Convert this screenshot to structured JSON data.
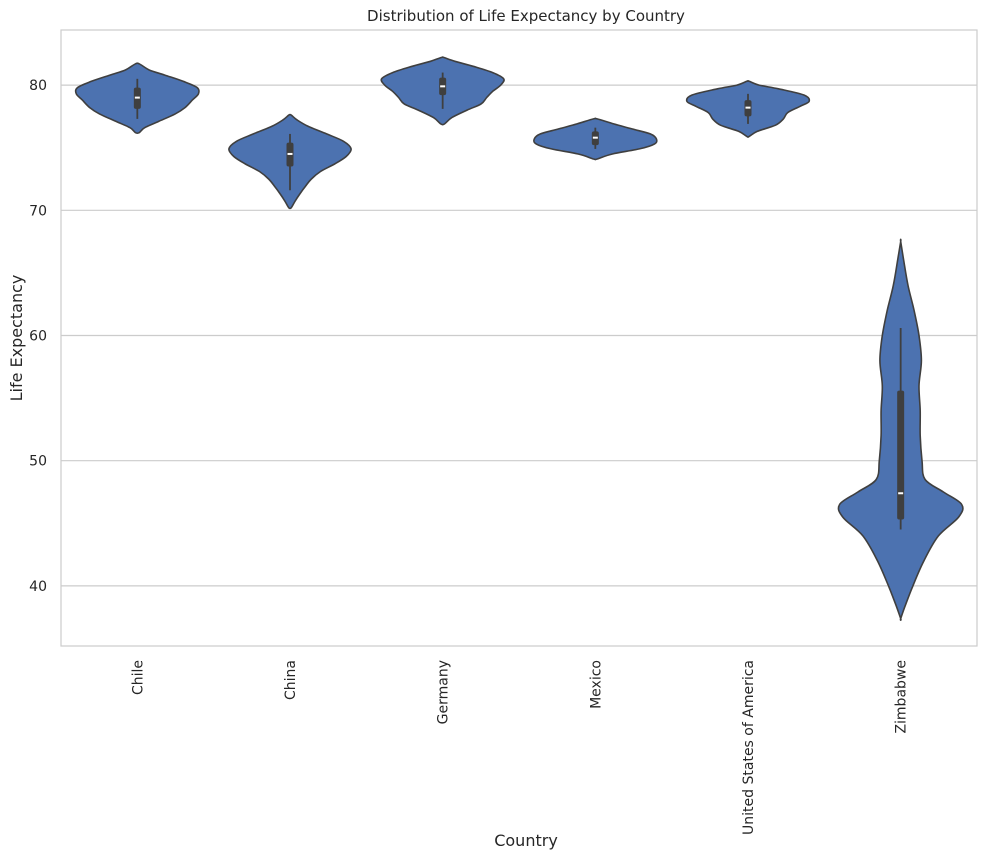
{
  "chart_data": {
    "type": "violin",
    "title": "Distribution of Life Expectancy by Country",
    "xlabel": "Country",
    "ylabel": "Life Expectancy",
    "ylim": [
      35.2,
      84.4
    ],
    "yticks": [
      40,
      50,
      60,
      70,
      80
    ],
    "grid": "horizontal",
    "colors": {
      "violin_fill": "#4c72b0",
      "violin_edge": "#3f3f3f",
      "box": "#3f3f3f",
      "median": "#ffffff",
      "grid": "#cccccc",
      "frame": "#cccccc"
    },
    "categories": [
      "Chile",
      "China",
      "Germany",
      "Mexico",
      "United States of America",
      "Zimbabwe"
    ],
    "violins": [
      {
        "category": "Chile",
        "min": 77.3,
        "q1": 78.1,
        "median": 79.0,
        "q3": 79.8,
        "max": 80.5,
        "density": [
          [
            76.2,
            0.03
          ],
          [
            76.6,
            0.12
          ],
          [
            77.1,
            0.35
          ],
          [
            77.7,
            0.62
          ],
          [
            78.2,
            0.78
          ],
          [
            78.8,
            0.9
          ],
          [
            79.3,
            1.0
          ],
          [
            79.8,
            0.98
          ],
          [
            80.3,
            0.75
          ],
          [
            80.8,
            0.45
          ],
          [
            81.2,
            0.2
          ],
          [
            81.7,
            0.03
          ]
        ]
      },
      {
        "category": "China",
        "min": 71.6,
        "q1": 73.5,
        "median": 74.5,
        "q3": 75.4,
        "max": 76.1,
        "density": [
          [
            70.2,
            0.02
          ],
          [
            70.7,
            0.08
          ],
          [
            71.3,
            0.16
          ],
          [
            71.9,
            0.25
          ],
          [
            72.5,
            0.35
          ],
          [
            73.1,
            0.5
          ],
          [
            73.7,
            0.73
          ],
          [
            74.3,
            0.92
          ],
          [
            74.9,
            1.0
          ],
          [
            75.5,
            0.88
          ],
          [
            76.1,
            0.6
          ],
          [
            76.7,
            0.3
          ],
          [
            77.2,
            0.12
          ],
          [
            77.6,
            0.02
          ]
        ]
      },
      {
        "category": "Germany",
        "min": 78.1,
        "q1": 79.2,
        "median": 79.9,
        "q3": 80.6,
        "max": 81.0,
        "density": [
          [
            76.9,
            0.03
          ],
          [
            77.4,
            0.15
          ],
          [
            78.0,
            0.4
          ],
          [
            78.5,
            0.63
          ],
          [
            79.0,
            0.72
          ],
          [
            79.5,
            0.82
          ],
          [
            80.0,
            0.95
          ],
          [
            80.5,
            1.0
          ],
          [
            81.0,
            0.82
          ],
          [
            81.5,
            0.5
          ],
          [
            81.9,
            0.2
          ],
          [
            82.2,
            0.02
          ]
        ]
      },
      {
        "category": "Mexico",
        "min": 74.9,
        "q1": 75.2,
        "median": 75.8,
        "q3": 76.3,
        "max": 76.6,
        "density": [
          [
            74.1,
            0.03
          ],
          [
            74.5,
            0.28
          ],
          [
            74.9,
            0.72
          ],
          [
            75.3,
            0.97
          ],
          [
            75.7,
            1.0
          ],
          [
            76.1,
            0.9
          ],
          [
            76.5,
            0.6
          ],
          [
            76.9,
            0.3
          ],
          [
            77.3,
            0.03
          ]
        ]
      },
      {
        "category": "United States of America",
        "min": 76.9,
        "q1": 77.5,
        "median": 78.2,
        "q3": 78.8,
        "max": 79.3,
        "density": [
          [
            75.9,
            0.02
          ],
          [
            76.3,
            0.15
          ],
          [
            76.8,
            0.45
          ],
          [
            77.3,
            0.58
          ],
          [
            77.8,
            0.65
          ],
          [
            78.3,
            0.85
          ],
          [
            78.7,
            1.0
          ],
          [
            79.2,
            0.92
          ],
          [
            79.7,
            0.5
          ],
          [
            80.0,
            0.18
          ],
          [
            80.3,
            0.02
          ]
        ]
      },
      {
        "category": "Zimbabwe",
        "min": 44.5,
        "q1": 45.3,
        "median": 47.4,
        "q3": 55.6,
        "max": 60.6,
        "density": [
          [
            37.4,
            0.0
          ],
          [
            38.5,
            0.08
          ],
          [
            40.0,
            0.2
          ],
          [
            42.0,
            0.38
          ],
          [
            44.0,
            0.62
          ],
          [
            45.5,
            0.95
          ],
          [
            46.5,
            1.0
          ],
          [
            47.5,
            0.7
          ],
          [
            48.5,
            0.4
          ],
          [
            50.0,
            0.35
          ],
          [
            52.0,
            0.32
          ],
          [
            54.0,
            0.32
          ],
          [
            56.0,
            0.3
          ],
          [
            58.0,
            0.34
          ],
          [
            60.0,
            0.3
          ],
          [
            62.0,
            0.22
          ],
          [
            64.0,
            0.12
          ],
          [
            66.0,
            0.05
          ],
          [
            67.5,
            0.0
          ]
        ]
      }
    ]
  }
}
